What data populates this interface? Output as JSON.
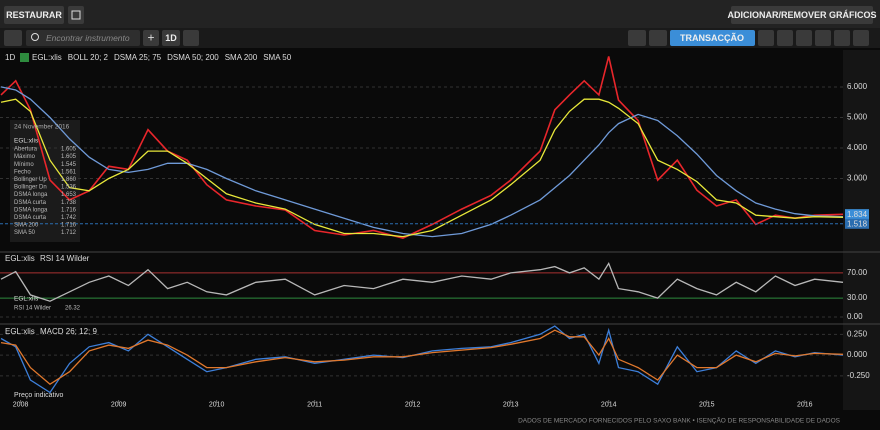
{
  "toolbar": {
    "restore": "RESTAURAR",
    "add_remove": "ADICIONAR/REMOVER GRÁFICOS",
    "search_placeholder": "Encontrar instrumento",
    "interval": "1D",
    "trade": "TRANSACÇÃO"
  },
  "chart_data": [
    {
      "type": "line",
      "interval": "1D",
      "indicators": [
        "BOLL 20; 2",
        "DSMA 25; 75",
        "DSMA 50; 200"
      ],
      "x": [
        2007.8,
        2007.95,
        2008.1,
        2008.3,
        2008.5,
        2008.7,
        2008.9,
        2009.1,
        2009.3,
        2009.5,
        2009.7,
        2009.9,
        2010.1,
        2010.4,
        2010.7,
        2011.0,
        2011.3,
        2011.6,
        2011.9,
        2012.2,
        2012.5,
        2012.8,
        2013.0,
        2013.3,
        2013.45,
        2013.6,
        2013.75,
        2013.9,
        2014.0,
        2014.1,
        2014.3,
        2014.5,
        2014.7,
        2014.9,
        2015.1,
        2015.3,
        2015.5,
        2015.7,
        2015.9,
        2016.1,
        2016.39
      ],
      "series": [
        {
          "name": "EGL:xlis",
          "color": "#e8262b",
          "values": [
            5.74,
            6.2,
            5.25,
            2.95,
            2.3,
            2.6,
            3.4,
            3.3,
            4.6,
            3.9,
            3.6,
            2.8,
            2.3,
            2.1,
            1.97,
            1.3,
            1.15,
            1.3,
            1.05,
            1.5,
            2.0,
            2.45,
            2.95,
            3.9,
            5.25,
            5.74,
            6.2,
            5.74,
            7.0,
            5.57,
            4.9,
            2.95,
            3.6,
            2.62,
            2.1,
            2.3,
            1.5,
            1.8,
            1.7,
            1.8,
            1.83
          ]
        },
        {
          "name": "SMA 200",
          "color": "#6f9ad8",
          "values": [
            6.0,
            5.9,
            5.6,
            5.0,
            4.3,
            3.7,
            3.3,
            3.2,
            3.3,
            3.5,
            3.5,
            3.3,
            3.0,
            2.6,
            2.3,
            2.0,
            1.7,
            1.4,
            1.2,
            1.1,
            1.2,
            1.5,
            1.8,
            2.3,
            2.7,
            3.1,
            3.6,
            4.1,
            4.5,
            4.8,
            5.1,
            4.9,
            4.4,
            3.8,
            3.1,
            2.6,
            2.2,
            2.0,
            1.85,
            1.78,
            1.75
          ]
        },
        {
          "name": "SMA 50",
          "color": "#e8e83a",
          "values": [
            5.5,
            5.6,
            5.2,
            3.6,
            2.7,
            2.6,
            3.0,
            3.3,
            3.9,
            3.9,
            3.5,
            3.0,
            2.5,
            2.2,
            2.0,
            1.5,
            1.2,
            1.2,
            1.1,
            1.3,
            1.8,
            2.3,
            2.8,
            3.6,
            4.6,
            5.2,
            5.6,
            5.6,
            5.5,
            5.3,
            4.8,
            3.6,
            3.3,
            2.9,
            2.3,
            2.2,
            1.8,
            1.75,
            1.7,
            1.75,
            1.73
          ]
        }
      ],
      "xlim": [
        2007.79,
        2016.39
      ],
      "ylim": [
        0.66,
        7.21
      ],
      "yticks": [
        {
          "value": 3,
          "label": "3.000"
        },
        {
          "value": 4,
          "label": "4.000"
        },
        {
          "value": 5,
          "label": "5.000"
        },
        {
          "value": 6,
          "label": "6.000"
        }
      ],
      "price_flags": [
        {
          "value": 1.834,
          "color": "#3b8ed8"
        },
        {
          "value": 1.518,
          "color": "#2a6db0"
        }
      ],
      "tooltip": {
        "date": "24 November 2016",
        "instrument": "EGL:xlis",
        "rows": [
          [
            "Abertura",
            "1.605"
          ],
          [
            "Máximo",
            "1.605"
          ],
          [
            "Mínimo",
            "1.545"
          ],
          [
            "Fecho",
            "1.561"
          ],
          [
            "Bollinger Up",
            "1.860"
          ],
          [
            "Bollinger Dn",
            "1.536"
          ],
          [
            "DSMA longa",
            "1.653"
          ],
          [
            "DSMA curta",
            "1.738"
          ],
          [
            "DSMA longa",
            "1.716"
          ],
          [
            "DSMA curta",
            "1.742"
          ],
          [
            "SMA 200",
            "1.716"
          ],
          [
            "SMA 50",
            "1.712"
          ]
        ]
      }
    },
    {
      "type": "line",
      "instrument": "EGL:xlis",
      "indicator": "RSI 14 Wilder",
      "x": [
        2007.8,
        2007.95,
        2008.1,
        2008.3,
        2008.5,
        2008.7,
        2008.9,
        2009.1,
        2009.3,
        2009.5,
        2009.7,
        2009.9,
        2010.1,
        2010.4,
        2010.7,
        2011.0,
        2011.3,
        2011.6,
        2011.9,
        2012.2,
        2012.5,
        2012.8,
        2013.0,
        2013.3,
        2013.45,
        2013.6,
        2013.75,
        2013.9,
        2014.0,
        2014.1,
        2014.3,
        2014.5,
        2014.7,
        2014.9,
        2015.1,
        2015.3,
        2015.5,
        2015.7,
        2015.9,
        2016.1,
        2016.39
      ],
      "series": [
        {
          "color": "#b8b8b8",
          "values": [
            60,
            72,
            35,
            25,
            40,
            55,
            65,
            50,
            75,
            45,
            55,
            40,
            35,
            55,
            60,
            35,
            50,
            45,
            60,
            55,
            65,
            60,
            70,
            75,
            80,
            70,
            78,
            60,
            85,
            45,
            40,
            30,
            60,
            45,
            35,
            55,
            40,
            65,
            50,
            60,
            55
          ]
        }
      ],
      "xlim": [
        2007.79,
        2016.39
      ],
      "ylim": [
        -8,
        100
      ],
      "yticks": [
        {
          "value": 70,
          "label": "70.00"
        },
        {
          "value": 30,
          "label": "30.00"
        },
        {
          "value": 0,
          "label": "0.00"
        }
      ],
      "ytick_line_colors": [
        "#a83232",
        "#2e8b3e",
        null
      ],
      "tooltip": {
        "instrument": "EGL:xlis",
        "label": "RSI 14 Wilder",
        "value": 26.32
      }
    },
    {
      "type": "line",
      "instrument": "EGL:xlis",
      "indicator": "MACD 26; 12; 9",
      "x": [
        2007.8,
        2007.95,
        2008.1,
        2008.3,
        2008.5,
        2008.7,
        2008.9,
        2009.1,
        2009.3,
        2009.5,
        2009.7,
        2009.9,
        2010.1,
        2010.4,
        2010.7,
        2011.0,
        2011.3,
        2011.6,
        2011.9,
        2012.2,
        2012.5,
        2012.8,
        2013.0,
        2013.3,
        2013.45,
        2013.6,
        2013.75,
        2013.9,
        2014.0,
        2014.1,
        2014.3,
        2014.5,
        2014.7,
        2014.9,
        2015.1,
        2015.3,
        2015.5,
        2015.7,
        2015.9,
        2016.1,
        2016.39
      ],
      "series": [
        {
          "color": "#3d7fd9",
          "values": [
            0.2,
            0.1,
            -0.3,
            -0.45,
            -0.1,
            0.1,
            0.15,
            0.05,
            0.25,
            0.1,
            -0.05,
            -0.2,
            -0.15,
            -0.05,
            -0.02,
            -0.1,
            -0.05,
            0.0,
            -0.03,
            0.05,
            0.08,
            0.1,
            0.15,
            0.25,
            0.35,
            0.2,
            0.25,
            -0.1,
            0.3,
            -0.15,
            -0.2,
            -0.35,
            0.1,
            -0.2,
            -0.15,
            0.05,
            -0.1,
            0.05,
            -0.02,
            0.03,
            0.0
          ]
        },
        {
          "color": "#e0782d",
          "values": [
            0.15,
            0.12,
            -0.15,
            -0.35,
            -0.2,
            0.05,
            0.12,
            0.08,
            0.18,
            0.12,
            0.0,
            -0.15,
            -0.15,
            -0.08,
            -0.03,
            -0.08,
            -0.06,
            -0.02,
            -0.02,
            0.03,
            0.06,
            0.09,
            0.13,
            0.2,
            0.3,
            0.22,
            0.22,
            0.0,
            0.2,
            -0.05,
            -0.15,
            -0.3,
            0.0,
            -0.15,
            -0.15,
            0.0,
            -0.08,
            0.02,
            -0.01,
            0.02,
            0.01
          ]
        }
      ],
      "xlim": [
        2007.79,
        2016.39
      ],
      "ylim": [
        -0.54,
        0.35
      ],
      "yticks": [
        {
          "value": 0.25,
          "label": "0.250"
        },
        {
          "value": 0,
          "label": "0.000"
        },
        {
          "value": -0.25,
          "label": "-0.250"
        }
      ],
      "xticks": [
        2008,
        2009,
        2010,
        2011,
        2012,
        2013,
        2014,
        2015,
        2016
      ],
      "annotation": "Preço indicativo"
    }
  ],
  "footer": "DADOS DE MERCADO FORNECIDOS PELO SAXO BANK • ISENÇÃO DE RESPONSABILIDADE DE DADOS"
}
